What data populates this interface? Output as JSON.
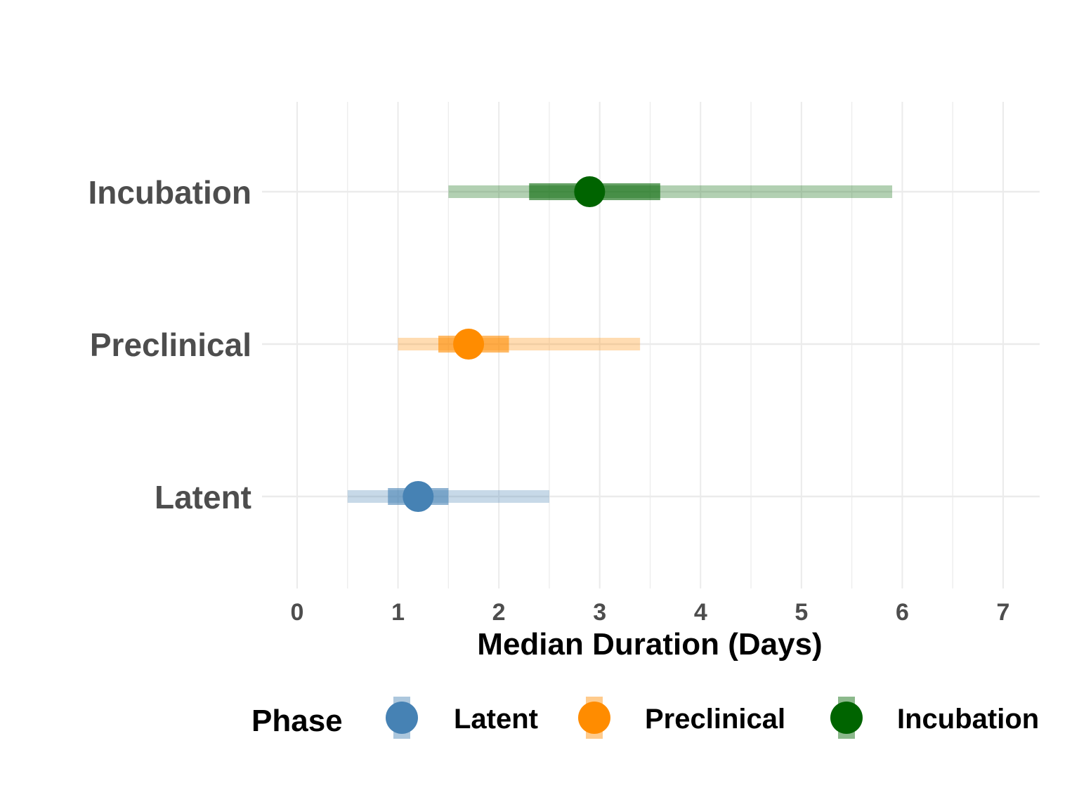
{
  "chart_data": {
    "type": "interval-dot",
    "title": "",
    "xlabel": "Median Duration (Days)",
    "ylabel": "",
    "xlim": [
      0,
      7
    ],
    "x_ticks": [
      0,
      1,
      2,
      3,
      4,
      5,
      6,
      7
    ],
    "x_tick_labels": [
      "0",
      "1",
      "2",
      "3",
      "4",
      "5",
      "6",
      "7"
    ],
    "grid": true,
    "legend": {
      "title": "Phase",
      "position": "bottom",
      "entries": [
        "Latent",
        "Preclinical",
        "Incubation"
      ]
    },
    "categories": [
      "Latent",
      "Preclinical",
      "Incubation"
    ],
    "series": [
      {
        "name": "Latent",
        "color": "#4682b4",
        "median": 1.2,
        "inner": [
          0.9,
          1.5
        ],
        "outer": [
          0.5,
          2.5
        ]
      },
      {
        "name": "Preclinical",
        "color": "#ff8c00",
        "median": 1.7,
        "inner": [
          1.4,
          2.1
        ],
        "outer": [
          1.0,
          3.4
        ]
      },
      {
        "name": "Incubation",
        "color": "#006400",
        "median": 2.9,
        "inner": [
          2.3,
          3.6
        ],
        "outer": [
          1.5,
          5.9
        ]
      }
    ]
  }
}
